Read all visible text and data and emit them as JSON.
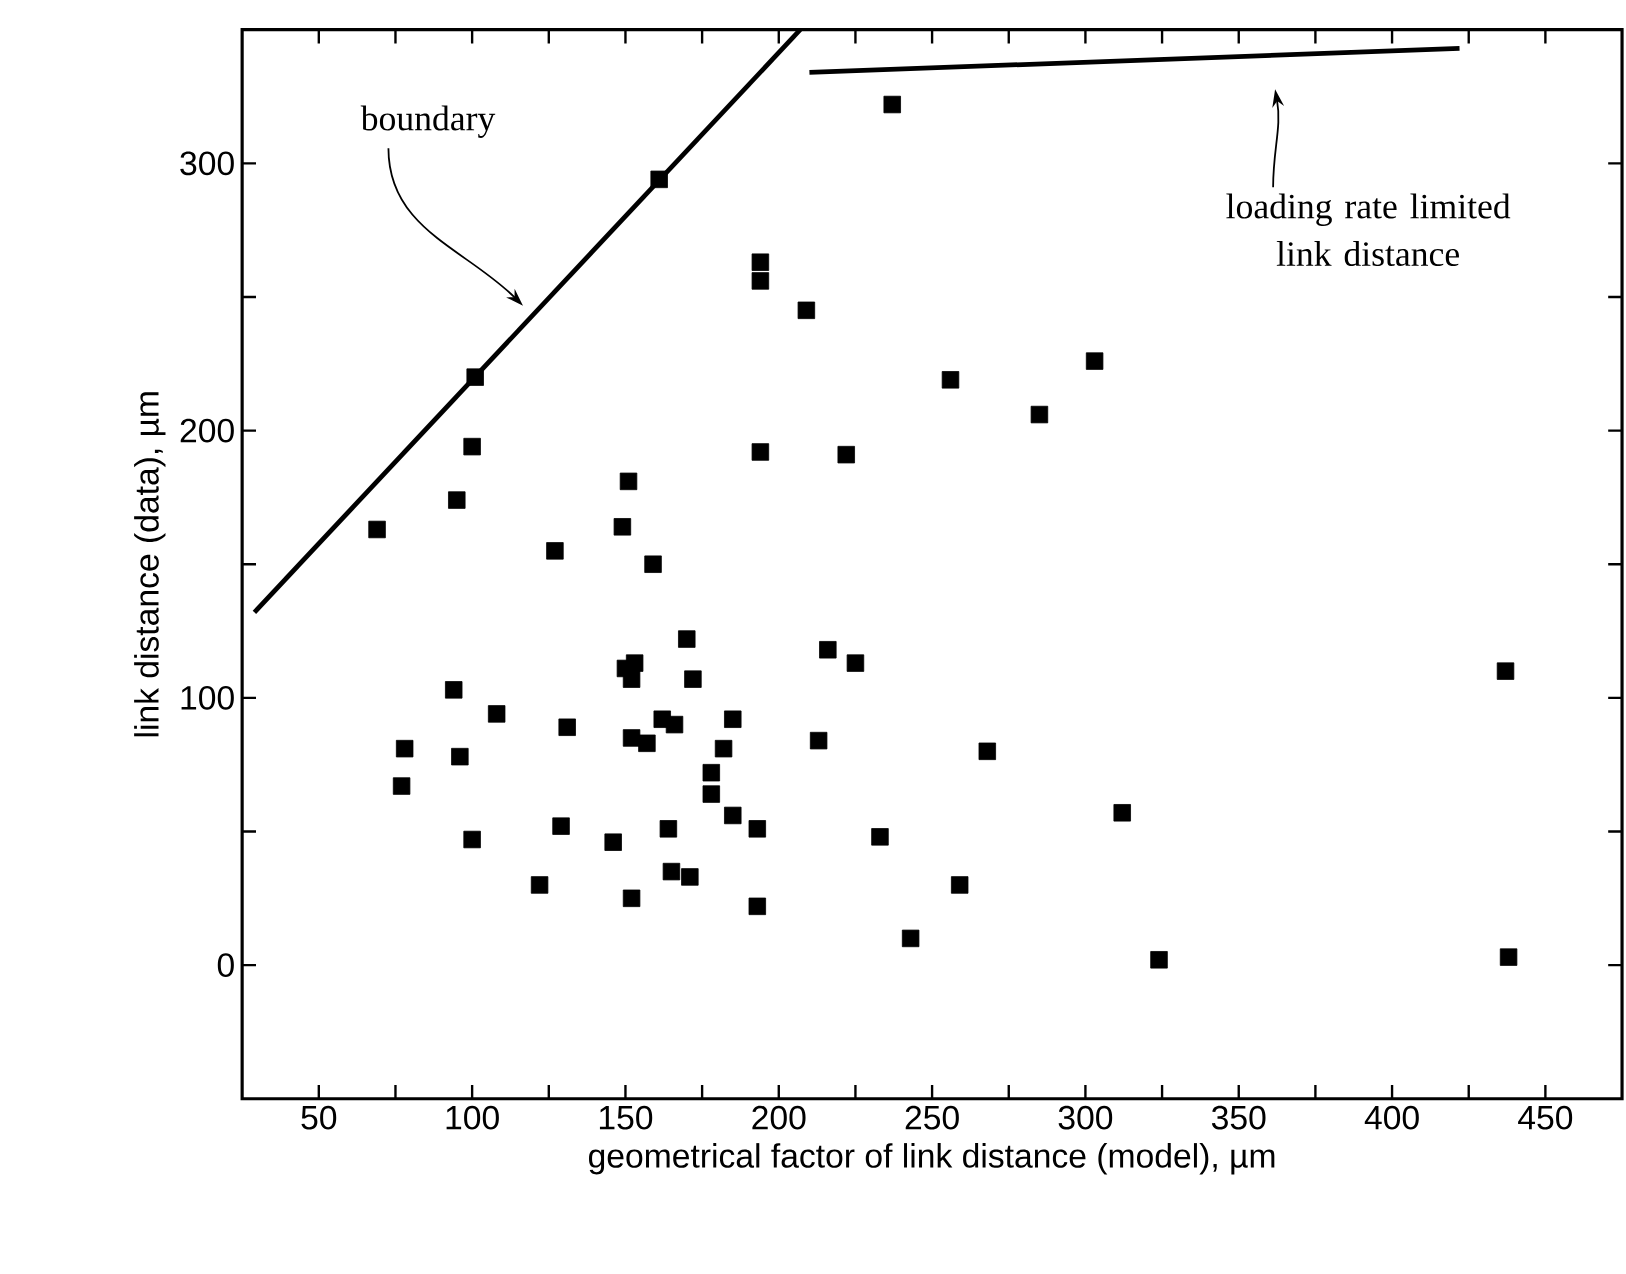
{
  "chart_data": {
    "type": "scatter",
    "xlabel": "geometrical factor of link distance (model),  µm",
    "ylabel": "link distance (data),  µm",
    "xlim": [
      25,
      475
    ],
    "ylim": [
      -50,
      350
    ],
    "xticks": [
      50,
      {
        "value": 75,
        "label": null
      },
      100,
      {
        "value": 125,
        "label": null
      },
      150,
      {
        "value": 175,
        "label": null
      },
      200,
      {
        "value": 225,
        "label": null
      },
      250,
      {
        "value": 275,
        "label": null
      },
      300,
      {
        "value": 325,
        "label": null
      },
      350,
      {
        "value": 375,
        "label": null
      },
      400,
      {
        "value": 425,
        "label": null
      },
      450
    ],
    "yticks": [
      0,
      {
        "value": 50,
        "label": null
      },
      100,
      {
        "value": 150,
        "label": null
      },
      200,
      {
        "value": 250,
        "label": null
      },
      300
    ],
    "annotations": [
      "boundary",
      "loading rate limited link distance"
    ],
    "series": [
      {
        "color": "#000000",
        "marker": "square",
        "x": [
          161,
          101,
          100,
          95,
          69,
          127,
          151,
          149,
          159,
          170,
          172,
          150,
          153,
          152,
          94,
          108,
          78,
          77,
          96,
          131,
          152,
          157,
          162,
          166,
          185,
          182,
          178,
          178,
          185,
          100,
          129,
          146,
          164,
          165,
          171,
          122,
          152,
          216,
          225,
          213,
          268,
          193,
          233,
          193,
          259,
          243,
          312,
          324,
          237,
          194,
          194,
          209,
          303,
          256,
          285,
          194,
          222,
          437,
          438
        ],
        "values": [
          294,
          220,
          194,
          174,
          163,
          155,
          181,
          164,
          150,
          122,
          107,
          111,
          113,
          107,
          103,
          94,
          81,
          67,
          78,
          89,
          85,
          83,
          92,
          90,
          92,
          81,
          72,
          64,
          56,
          47,
          52,
          46,
          51,
          35,
          33,
          30,
          25,
          118,
          113,
          84,
          80,
          51,
          48,
          22,
          30,
          10,
          57,
          2,
          322,
          263,
          256,
          245,
          226,
          219,
          206,
          192,
          191,
          110,
          3
        ]
      },
      {
        "type": "line",
        "color": "#000000",
        "marker": "none",
        "line_style": "solid",
        "x": [
          29,
          207
        ],
        "values": [
          132,
          350
        ]
      },
      {
        "type": "line",
        "color": "#000000",
        "marker": "none",
        "line_style": "solid",
        "x": [
          210,
          422
        ],
        "values": [
          334,
          343
        ]
      }
    ]
  }
}
